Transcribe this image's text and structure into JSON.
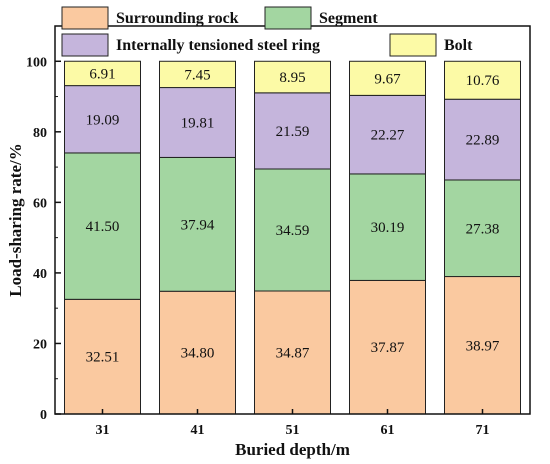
{
  "chart_data": {
    "type": "bar",
    "stacked": true,
    "title": "",
    "xlabel": "Buried depth/m",
    "ylabel": "Load-sharing rate/%",
    "ylim": [
      0,
      110
    ],
    "yticks": [
      0,
      20,
      40,
      60,
      80,
      100
    ],
    "categories": [
      "31",
      "41",
      "51",
      "61",
      "71"
    ],
    "legend_position": "top",
    "series": [
      {
        "name": "Surrounding rock",
        "color": "#fac9a0",
        "values": [
          32.51,
          34.8,
          34.87,
          37.87,
          38.97
        ],
        "labels": [
          "32.51",
          "34.80",
          "34.87",
          "37.87",
          "38.97"
        ]
      },
      {
        "name": "Segment",
        "color": "#a3d6a1",
        "values": [
          41.5,
          37.94,
          34.59,
          30.19,
          27.38
        ],
        "labels": [
          "41.50",
          "37.94",
          "34.59",
          "30.19",
          "27.38"
        ]
      },
      {
        "name": "Internally tensioned steel ring",
        "color": "#c5b5dc",
        "values": [
          19.09,
          19.81,
          21.59,
          22.27,
          22.89
        ],
        "labels": [
          "19.09",
          "19.81",
          "21.59",
          "22.27",
          "22.89"
        ]
      },
      {
        "name": "Bolt",
        "color": "#fcfaa6",
        "values": [
          6.91,
          7.45,
          8.95,
          9.67,
          10.76
        ],
        "labels": [
          "6.91",
          "7.45",
          "8.95",
          "9.67",
          "10.76"
        ]
      }
    ]
  }
}
